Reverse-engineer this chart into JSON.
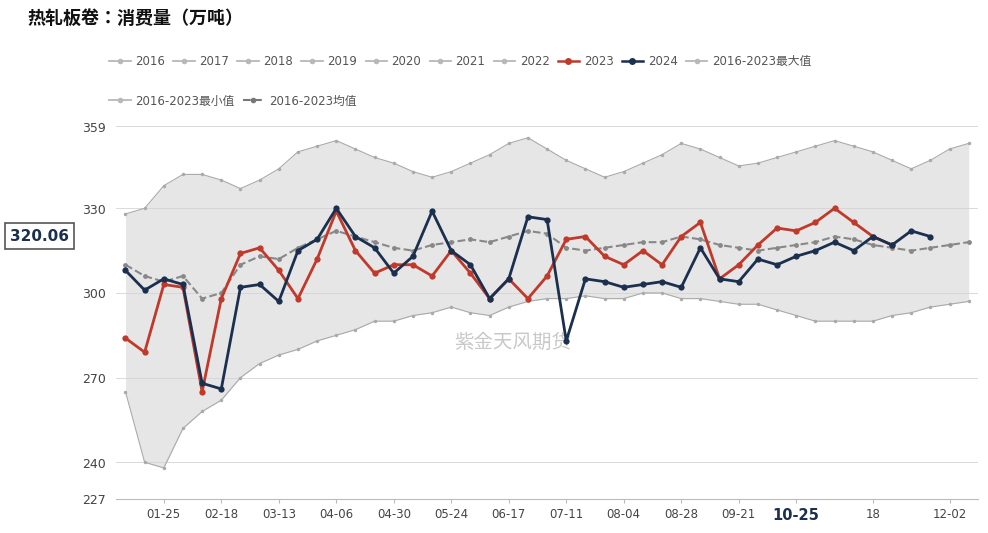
{
  "title": "热轧板卷：消费量（万吨）",
  "watermark": "紫金天风期货",
  "current_value": "320.06",
  "bg_color": "#ffffff",
  "shaded_color": "#d3d3d3",
  "xtick_labels": [
    "01-25",
    "02-18",
    "03-13",
    "04-06",
    "04-30",
    "05-24",
    "06-17",
    "07-11",
    "08-04",
    "08-28",
    "09-21",
    "10-25",
    "18",
    "12-02"
  ],
  "xtick_positions": [
    2,
    5,
    8,
    11,
    14,
    17,
    20,
    23,
    26,
    29,
    32,
    35,
    39,
    43
  ],
  "yticks": [
    227,
    240,
    270,
    300,
    330,
    359
  ],
  "highlight_xtick_idx": 11,
  "data_2023": [
    284,
    279,
    303,
    302,
    265,
    298,
    314,
    316,
    308,
    298,
    312,
    329,
    315,
    307,
    310,
    310,
    306,
    315,
    307,
    298,
    305,
    298,
    306,
    319,
    320,
    313,
    310,
    315,
    310,
    320,
    325,
    305,
    310,
    317,
    323,
    322,
    325,
    330,
    325,
    320,
    317,
    null,
    null,
    null,
    null
  ],
  "data_2024": [
    308,
    301,
    305,
    303,
    268,
    266,
    302,
    303,
    297,
    315,
    319,
    330,
    320,
    316,
    307,
    313,
    329,
    315,
    310,
    298,
    305,
    327,
    326,
    283,
    305,
    304,
    302,
    303,
    304,
    302,
    316,
    305,
    304,
    312,
    310,
    313,
    315,
    318,
    315,
    320,
    317,
    322,
    320,
    null,
    null
  ],
  "data_max": [
    328,
    330,
    338,
    342,
    342,
    340,
    337,
    340,
    344,
    350,
    352,
    354,
    351,
    348,
    346,
    343,
    341,
    343,
    346,
    349,
    353,
    355,
    351,
    347,
    344,
    341,
    343,
    346,
    349,
    353,
    351,
    348,
    345,
    346,
    348,
    350,
    352,
    354,
    352,
    350,
    347,
    344,
    347,
    351,
    353
  ],
  "data_min": [
    265,
    240,
    238,
    252,
    258,
    262,
    270,
    275,
    278,
    280,
    283,
    285,
    287,
    290,
    290,
    292,
    293,
    295,
    293,
    292,
    295,
    297,
    298,
    298,
    299,
    298,
    298,
    300,
    300,
    298,
    298,
    297,
    296,
    296,
    294,
    292,
    290,
    290,
    290,
    290,
    292,
    293,
    295,
    296,
    297
  ],
  "data_mean": [
    310,
    306,
    304,
    306,
    298,
    300,
    310,
    313,
    312,
    316,
    319,
    322,
    320,
    318,
    316,
    315,
    317,
    318,
    319,
    318,
    320,
    322,
    321,
    316,
    315,
    316,
    317,
    318,
    318,
    320,
    319,
    317,
    316,
    315,
    316,
    317,
    318,
    320,
    319,
    317,
    316,
    315,
    316,
    317,
    318
  ],
  "n_points": 45,
  "color_2023": "#c0392b",
  "color_2024": "#1b2f4e",
  "color_gray": "#b8b8b8",
  "color_mean_line": "#888888",
  "color_maxmin_line": "#aaaaaa",
  "legend_years": [
    "2016",
    "2017",
    "2018",
    "2019",
    "2020",
    "2021",
    "2022"
  ],
  "legend_row1": [
    "2016",
    "2017",
    "2018",
    "2019",
    "2020",
    "2021",
    "2022",
    "2023",
    "2024",
    "2016-2023最大值"
  ],
  "legend_row2": [
    "2016-2023最小值",
    "2016-2023均值"
  ]
}
